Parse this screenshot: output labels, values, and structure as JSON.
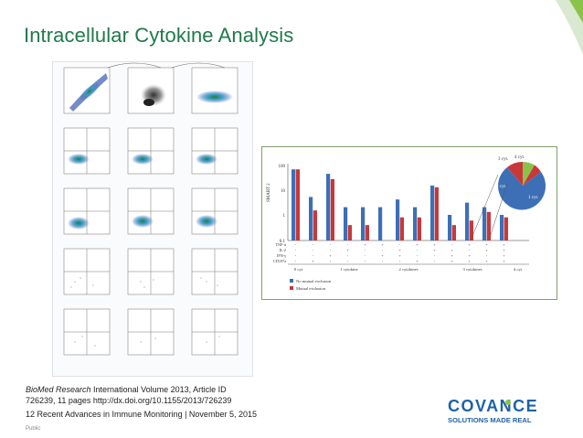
{
  "slide": {
    "title": "Intracellular Cytokine Analysis",
    "caption_journal": "BioMed Research",
    "caption_rest": " International Volume 2013, Article ID",
    "caption_line2": "726239, 11 pages http://dx.doi.org/10.1155/2013/726239",
    "footer": "12 Recent Advances in Immune Monitoring | November 5, 2015",
    "classification": "Public"
  },
  "logo": {
    "name": "COVANCE",
    "tagline": "SOLUTIONS MADE REAL",
    "brand_color": "#1e62a8"
  },
  "colors": {
    "title_green": "#1f7a4a",
    "accent_green": "#8bc34a",
    "bar_blue": "#3d6fb6",
    "bar_red": "#c8383a"
  },
  "chart_data": {
    "type": "bar",
    "ylabel": "SMART 2",
    "yscale": "log",
    "ylim": [
      0.1,
      100
    ],
    "yticks": [
      "100",
      "10",
      "1",
      "0.1"
    ],
    "series": [
      {
        "name": "No mutual exclusion",
        "color": "#3d6fb6",
        "values": [
          60,
          5,
          40,
          2,
          2,
          2,
          4,
          2,
          14,
          1,
          3,
          2,
          1
        ]
      },
      {
        "name": "Mutual exclusion",
        "color": "#c8383a",
        "values": [
          60,
          1.5,
          25,
          0.4,
          0.4,
          0,
          0.8,
          0.8,
          12,
          0.4,
          0.6,
          1.3,
          0.8
        ]
      }
    ],
    "row_labels": [
      "TNF-α",
      "IL-2",
      "IFN-γ",
      "CD107a"
    ],
    "groups": [
      "0 cyt.",
      "1 cytokine",
      "2 cytokines",
      "3 cytokines",
      "4 cyt."
    ],
    "legend": [
      "No mutual exclusion",
      "Mutual exclusion"
    ],
    "pie": {
      "labels": [
        "3 cyt.",
        "4 cyt.",
        "2 cyt.",
        "1 cyt."
      ],
      "values": [
        8,
        4,
        18,
        70
      ],
      "colors": [
        "#c8383a",
        "#8bc34a",
        "#c8383a",
        "#3d6fb6"
      ]
    }
  }
}
